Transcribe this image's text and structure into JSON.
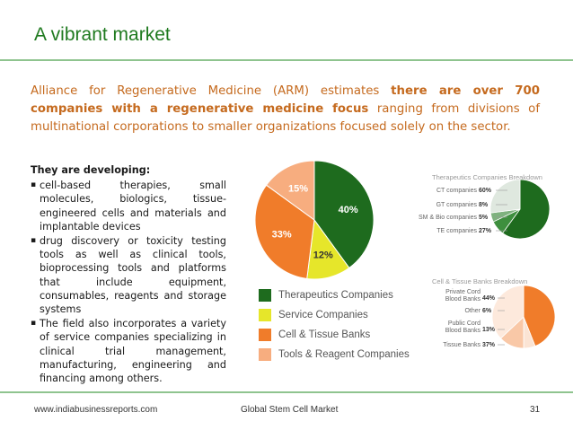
{
  "title": "A vibrant market",
  "intro": {
    "p1": "Alliance for Regenerative Medicine (ARM) estimates ",
    "bold": "there are over 700 companies with a regenerative medicine focus",
    "p2": " ranging from divisions of multinational corporations to smaller organizations focused solely on the sector."
  },
  "left": {
    "heading": "They are developing:",
    "bullets": [
      "cell-based therapies, small molecules, biologics, tissue-engineered cells and materials and implantable devices",
      "drug discovery or toxicity testing tools as well as clinical tools, bioprocessing tools and platforms that include equipment, consumables, reagents and storage systems",
      "The field also incorporates a variety of service companies specializing in clinical trial management, manufacturing, engineering and financing among others."
    ]
  },
  "colors": {
    "title": "#1f7a1f",
    "intro": "#c56a1e",
    "green": "#1e6b1e",
    "yellow": "#e6e62a",
    "orange": "#f07c2a",
    "peach": "#f7ad7f"
  },
  "chart_data": [
    {
      "type": "pie",
      "labels": [
        "Therapeutics Companies",
        "Service Companies",
        "Cell & Tissue Banks",
        "Tools & Reagent Companies"
      ],
      "values": [
        40,
        12,
        33,
        15
      ],
      "value_labels": [
        "40%",
        "12%",
        "33%",
        "15%"
      ],
      "legend": "bottom"
    },
    {
      "type": "pie",
      "title": "Therapeutics Companies Breakdown",
      "labels": [
        "CT companies",
        "GT companies",
        "SM & Bio companies",
        "TE companies"
      ],
      "values": [
        60,
        8,
        5,
        27
      ],
      "value_labels": [
        "60%",
        "8%",
        "5%",
        "27%"
      ]
    },
    {
      "type": "pie",
      "title": "Cell & Tissue Banks Breakdown",
      "labels": [
        "Private Cord Blood Banks",
        "Other",
        "Public Cord Blood Banks",
        "Tissue Banks"
      ],
      "label_lines": [
        [
          "Private Cord",
          "Blood Banks"
        ],
        [
          "Other"
        ],
        [
          "Public Cord",
          "Blood Banks"
        ],
        [
          "Tissue Banks"
        ]
      ],
      "values": [
        44,
        6,
        13,
        37
      ],
      "value_labels": [
        "44%",
        "6%",
        "13%",
        "37%"
      ]
    }
  ],
  "footer": {
    "website": "www.indiabusinessreports.com",
    "center": "Global Stem Cell Market",
    "page": "31"
  }
}
